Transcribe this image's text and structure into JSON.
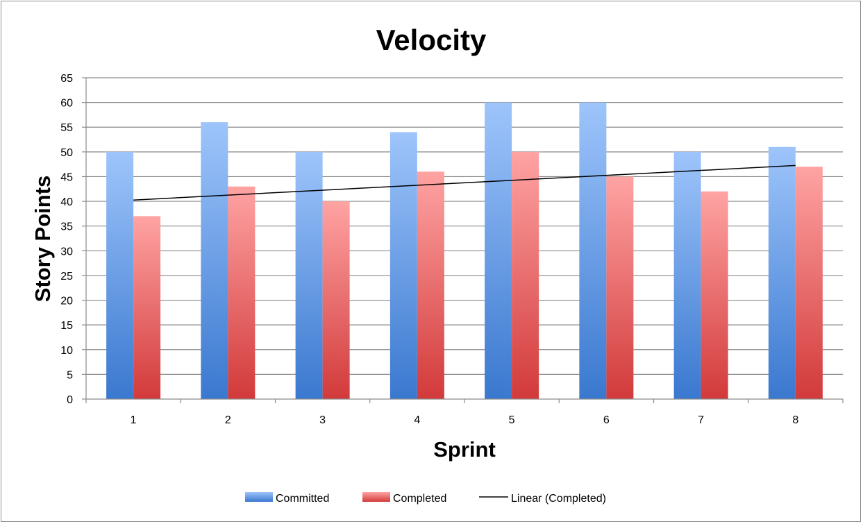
{
  "chart_data": {
    "type": "bar",
    "title": "Velocity",
    "xlabel": "Sprint",
    "ylabel": "Story Points",
    "categories": [
      "1",
      "2",
      "3",
      "4",
      "5",
      "6",
      "7",
      "8"
    ],
    "series": [
      {
        "name": "Committed",
        "values": [
          50,
          56,
          50,
          54,
          60,
          60,
          50,
          51
        ],
        "color": "#4f8fdc"
      },
      {
        "name": "Completed",
        "values": [
          37,
          43,
          40,
          46,
          50,
          45,
          42,
          47
        ],
        "color": "#e05555"
      }
    ],
    "trendline": {
      "name": "Linear (Completed)",
      "start": 40.25,
      "end": 47.25,
      "color": "#000000"
    },
    "ylim": [
      0,
      65
    ],
    "yticks": [
      0,
      5,
      10,
      15,
      20,
      25,
      30,
      35,
      40,
      45,
      50,
      55,
      60,
      65
    ],
    "grid": true,
    "legend_position": "bottom"
  }
}
